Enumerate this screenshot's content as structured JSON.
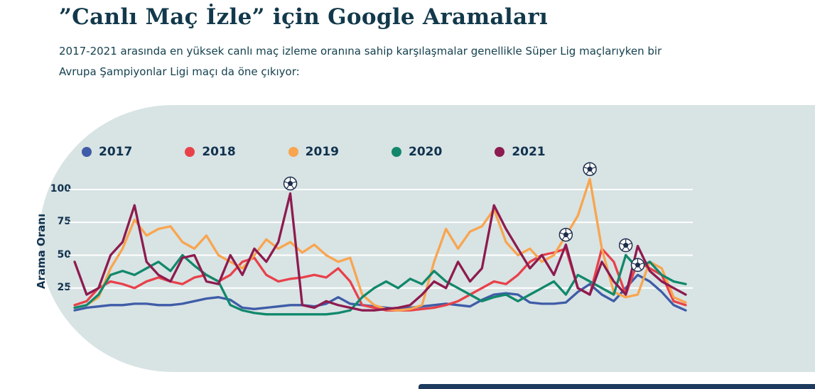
{
  "header": {
    "title": "”Canlı Maç İzle” için Google Aramaları",
    "subtitle_line1": "2017-2021 arasında en yüksek canlı maç izleme oranına sahip karşılaşmalar genellikle Süper Lig maçlarıyken bir",
    "subtitle_line2": "Avrupa Şampiyonlar Ligi maçı da öne çıkıyor:"
  },
  "colors": {
    "background": "#ffffff",
    "panel": "#d8e3e4",
    "grid": "#ffffff",
    "text": "#10324e",
    "bottom_bar": "#1d3a5e",
    "ball_outline": "#1e2f4d"
  },
  "chart_data": {
    "type": "line",
    "title": "",
    "ylabel": "Arama Oranı",
    "xlabel": "",
    "y_ticks": [
      25,
      50,
      75,
      100
    ],
    "ylim": [
      0,
      110
    ],
    "x_count": 52,
    "grid": "horizontal-white",
    "legend_position": "top",
    "series": [
      {
        "name": "2017",
        "color": "#3e5ca7",
        "values": [
          8,
          10,
          11,
          12,
          12,
          13,
          13,
          12,
          12,
          13,
          15,
          17,
          18,
          16,
          10,
          9,
          10,
          11,
          12,
          12,
          11,
          13,
          18,
          13,
          12,
          11,
          10,
          9,
          10,
          11,
          12,
          13,
          12,
          11,
          16,
          20,
          21,
          20,
          14,
          13,
          13,
          14,
          22,
          28,
          20,
          15,
          25,
          35,
          30,
          22,
          12,
          8
        ]
      },
      {
        "name": "2018",
        "color": "#e8414a",
        "values": [
          12,
          15,
          25,
          30,
          28,
          25,
          30,
          33,
          30,
          28,
          33,
          35,
          30,
          35,
          45,
          48,
          35,
          30,
          32,
          33,
          35,
          33,
          40,
          30,
          12,
          10,
          8,
          8,
          8,
          9,
          10,
          12,
          15,
          20,
          25,
          30,
          28,
          35,
          45,
          50,
          52,
          55,
          25,
          20,
          55,
          45,
          20,
          45,
          40,
          35,
          15,
          12
        ]
      },
      {
        "name": "2019",
        "color": "#f8a54f",
        "values": [
          10,
          12,
          18,
          40,
          55,
          77,
          65,
          70,
          72,
          60,
          55,
          65,
          50,
          45,
          40,
          50,
          62,
          55,
          60,
          52,
          58,
          50,
          45,
          48,
          20,
          12,
          9,
          8,
          9,
          12,
          45,
          70,
          55,
          68,
          72,
          85,
          60,
          50,
          55,
          45,
          50,
          65,
          80,
          108,
          55,
          22,
          18,
          20,
          45,
          40,
          18,
          14
        ]
      },
      {
        "name": "2020",
        "color": "#11886b",
        "values": [
          10,
          12,
          20,
          35,
          38,
          35,
          40,
          45,
          38,
          50,
          42,
          35,
          30,
          12,
          8,
          6,
          5,
          5,
          5,
          5,
          5,
          5,
          6,
          8,
          18,
          25,
          30,
          25,
          32,
          28,
          38,
          30,
          25,
          20,
          15,
          18,
          20,
          15,
          20,
          25,
          30,
          20,
          35,
          30,
          25,
          20,
          50,
          40,
          45,
          35,
          30,
          28
        ]
      },
      {
        "name": "2021",
        "color": "#8d1b4f",
        "values": [
          45,
          20,
          25,
          50,
          60,
          88,
          45,
          35,
          30,
          48,
          50,
          30,
          28,
          50,
          35,
          55,
          45,
          60,
          97,
          12,
          10,
          15,
          12,
          10,
          8,
          8,
          9,
          10,
          12,
          20,
          30,
          25,
          45,
          30,
          40,
          88,
          70,
          55,
          40,
          50,
          35,
          58,
          25,
          20,
          45,
          30,
          20,
          57,
          38,
          30,
          25,
          20
        ]
      }
    ],
    "annotations": [
      {
        "icon": "soccer-ball-icon",
        "series": "2021",
        "week": 19
      },
      {
        "icon": "soccer-ball-icon",
        "series": "2019",
        "week": 44
      },
      {
        "icon": "soccer-ball-icon",
        "series": "2021",
        "week": 42
      },
      {
        "icon": "soccer-ball-icon",
        "series": "2020",
        "week": 47
      },
      {
        "icon": "soccer-ball-icon",
        "series": "2017",
        "week": 48
      }
    ]
  }
}
